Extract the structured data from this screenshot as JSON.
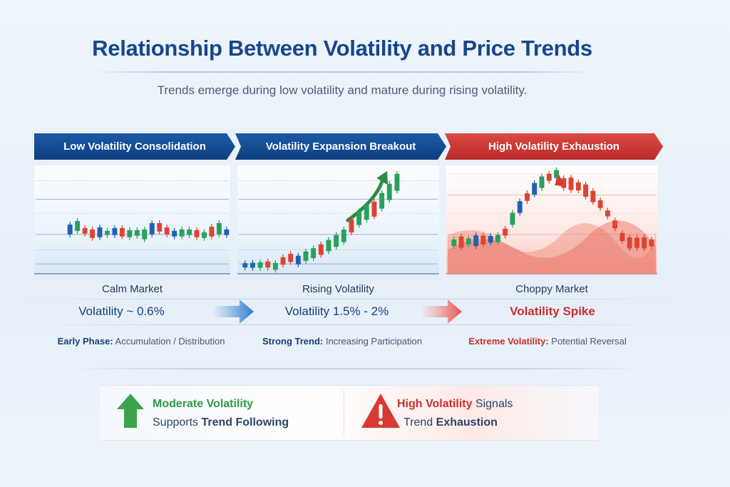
{
  "title": "Relationship Between Volatility and Price Trends",
  "subtitle": "Trends emerge during low volatility and mature during rising volatility.",
  "phases": [
    {
      "banner": "Low Volatility Consolidation",
      "label": "Calm Market",
      "volatility": "Volatility ~ 0.6%",
      "desc_bold": "Early Phase:",
      "desc": " Accumulation / Distribution",
      "color": "#164b94"
    },
    {
      "banner": "Volatility Expansion Breakout",
      "label": "Rising Volatility",
      "volatility": "Volatility 1.5% - 2%",
      "desc_bold": "Strong Trend:",
      "desc": " Increasing Participation",
      "color": "#164b94"
    },
    {
      "banner": "High Volatility Exhaustion",
      "label": "Choppy Market",
      "volatility": "Volatility Spike",
      "desc_bold": "Extreme Volatility:",
      "desc": " Potential Reversal",
      "color": "#c8302e"
    }
  ],
  "bottom": {
    "left": {
      "l1_bold": "Moderate Volatility",
      "l2_pre": "Supports ",
      "l2_bold": "Trend Following",
      "icon": "up-arrow-icon",
      "color": "#2e9a44"
    },
    "right": {
      "l1_bold": "High Volatility",
      "l1_post": " Signals",
      "l2_pre": "Trend ",
      "l2_bold": "Exhaustion",
      "icon": "warning-icon",
      "color": "#d83a33"
    }
  },
  "colors": {
    "up": "#2aa05c",
    "down": "#dd4433",
    "neutral": "#1f63b0"
  }
}
